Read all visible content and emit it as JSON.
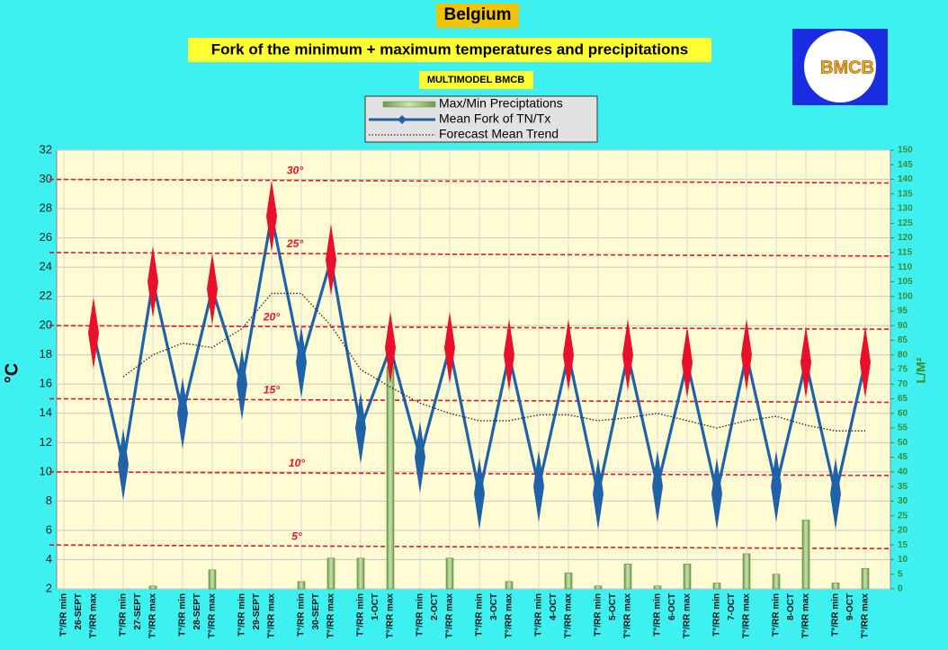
{
  "chart_data": {
    "type": "line",
    "title": "Belgium",
    "subtitle": "Fork of the minimum + maximum temperatures and precipitations",
    "model_label": "MULTIMODEL BMCB",
    "logo_text": "BMCB",
    "y_label": "°C",
    "y2_label": "L/M²",
    "categories": [
      "T°/RR min",
      "T°/RR max",
      "T°/RR min",
      "T°/RR max",
      "T°/RR min",
      "T°/RR max",
      "T°/RR min",
      "T°/RR max",
      "T°/RR min",
      "T°/RR max",
      "T°/RR min",
      "T°/RR max",
      "T°/RR min",
      "T°/RR max",
      "T°/RR min",
      "T°/RR max",
      "T°/RR min",
      "T°/RR max",
      "T°/RR min",
      "T°/RR max",
      "T°/RR min",
      "T°/RR max",
      "T°/RR min",
      "T°/RR max",
      "T°/RR min",
      "T°/RR max",
      "T°/RR min",
      "T°/RR max"
    ],
    "dates": [
      "26-SEPT",
      "27-SEPT",
      "28-SEPT",
      "29-SEPT",
      "30-SEPT",
      "1-OCT",
      "2-OCT",
      "3-OCT",
      "4-OCT",
      "5-OCT",
      "6-OCT",
      "7-OCT",
      "8-OCT",
      "9-OCT"
    ],
    "ylim": [
      2,
      32
    ],
    "yticks": [
      2,
      4,
      6,
      8,
      10,
      12,
      14,
      16,
      18,
      20,
      22,
      24,
      26,
      28,
      30,
      32
    ],
    "y2lim": [
      0,
      150
    ],
    "y2ticks": [
      0,
      5,
      10,
      15,
      20,
      25,
      30,
      35,
      40,
      45,
      50,
      55,
      60,
      65,
      70,
      75,
      80,
      85,
      90,
      95,
      100,
      105,
      110,
      115,
      120,
      125,
      130,
      135,
      140,
      145,
      150
    ],
    "grid": true,
    "ref_lines": [
      {
        "value": 30,
        "label": "30°"
      },
      {
        "value": 25,
        "label": "25°"
      },
      {
        "value": 20,
        "label": "20°"
      },
      {
        "value": 15,
        "label": "15°"
      },
      {
        "value": 10,
        "label": "10°"
      },
      {
        "value": 5,
        "label": "5°"
      }
    ],
    "series": [
      {
        "name": "Max/Min Preciptations",
        "kind": "bar",
        "axis": "y2",
        "color": "#9cc77c",
        "values": [
          null,
          null,
          null,
          1,
          null,
          6.5,
          null,
          null,
          2.5,
          10.5,
          10.5,
          76,
          null,
          10.5,
          null,
          2.5,
          null,
          5.5,
          1,
          8.5,
          1,
          8.5,
          2,
          12,
          5,
          23.5,
          2,
          7
        ]
      },
      {
        "name": "Mean Fork of TN/Tx",
        "kind": "line",
        "color": "#1f62a8",
        "max_color": "#e8102a",
        "values": [
          null,
          19.5,
          10.5,
          23,
          14,
          22.5,
          16,
          27.5,
          17.5,
          24.5,
          13,
          18.5,
          11,
          18.5,
          8.5,
          18,
          9,
          18,
          8.5,
          18,
          9,
          17.5,
          8.5,
          18,
          9,
          17.5,
          8.5,
          17.5
        ]
      },
      {
        "name": "Forecast Mean Trend",
        "kind": "dotted",
        "color": "#222222",
        "values": [
          null,
          null,
          16.5,
          18,
          18.8,
          18.5,
          19.8,
          22.2,
          22.2,
          20,
          17,
          15.8,
          14.7,
          14,
          13.5,
          13.5,
          13.9,
          13.9,
          13.5,
          13.7,
          14,
          13.5,
          13,
          13.5,
          13.8,
          13.2,
          12.8,
          12.8
        ]
      }
    ]
  }
}
